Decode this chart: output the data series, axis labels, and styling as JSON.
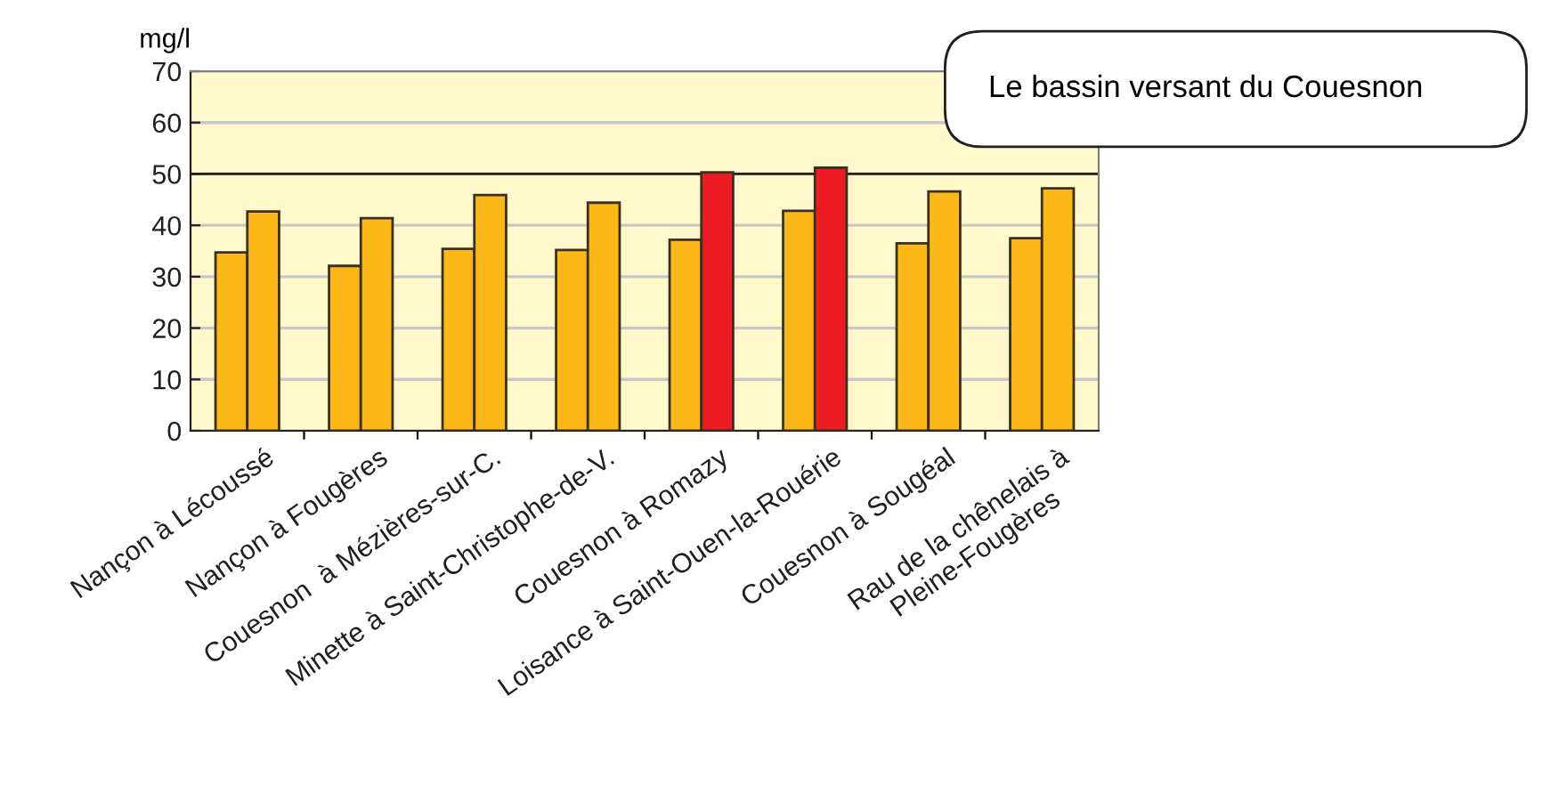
{
  "chart_data": {
    "type": "bar",
    "ylabel": "mg/l",
    "categories": [
      "Nançon à Lécoussé",
      "Nançon à Fougères",
      "Couesnon  à Mézières-sur-C.",
      "Minette à Saint-Christophe-de-V.",
      "Couesnon à Romazy",
      "Loisance à Saint-Ouen-la-Rouérie",
      "Couesnon à Sougéal",
      "Rau de la chênelais à\nPleine-Fougères"
    ],
    "series": [
      {
        "color": "#fbb817",
        "values": [
          34.7,
          32.1,
          35.4,
          35.2,
          37.2,
          42.8,
          36.5,
          37.5
        ]
      },
      {
        "color": "#fbb817",
        "colors": [
          "#fbb817",
          "#fbb817",
          "#fbb817",
          "#fbb817",
          "#ed1c24",
          "#ed1c24",
          "#fbb817",
          "#fbb817"
        ],
        "values": [
          42.7,
          41.4,
          45.9,
          44.4,
          50.3,
          51.2,
          46.6,
          47.2
        ]
      }
    ],
    "ylim": [
      0,
      70
    ],
    "yticks": [
      0,
      10,
      20,
      30,
      40,
      50,
      60,
      70
    ],
    "grid": "y",
    "ref_lines": [
      {
        "axis": "y",
        "value": 50,
        "color": "#231f20"
      }
    ],
    "annotations": [
      "Le bassin versant du Couesnon"
    ]
  }
}
